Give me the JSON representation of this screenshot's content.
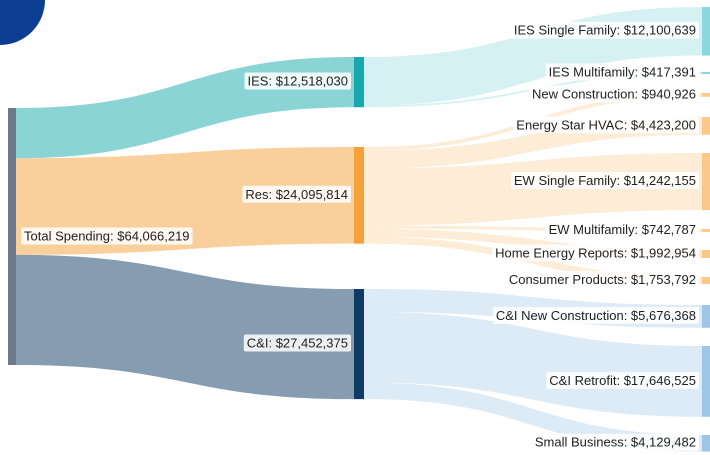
{
  "chart_data": {
    "type": "sankey",
    "nodes": [
      {
        "label": "Total Spending: $64,066,219",
        "value": 64066219,
        "color": "#6c7a8b",
        "parent": null
      },
      {
        "label": "IES: $12,518,030",
        "value": 12518030,
        "color": "#17a9ad",
        "parent": 0
      },
      {
        "label": "Res: $24,095,814",
        "value": 24095814,
        "color": "#f3a23a",
        "parent": 0
      },
      {
        "label": "C&I: $27,452,375",
        "value": 27452375,
        "color": "#0e3b63",
        "parent": 0
      },
      {
        "label": "IES Single Family: $12,100,639",
        "value": 12100639,
        "color": "#8ad8dc",
        "parent": 1
      },
      {
        "label": "IES Multifamily: $417,391",
        "value": 417391,
        "color": "#8ad8dc",
        "parent": 1
      },
      {
        "label": "New Construction: $940,926",
        "value": 940926,
        "color": "#f8c98a",
        "parent": 2
      },
      {
        "label": "Energy Star HVAC: $4,423,200",
        "value": 4423200,
        "color": "#f8c98a",
        "parent": 2
      },
      {
        "label": "EW Single Family: $14,242,155",
        "value": 14242155,
        "color": "#f8c98a",
        "parent": 2
      },
      {
        "label": "EW Multifamily: $742,787",
        "value": 742787,
        "color": "#f8c98a",
        "parent": 2
      },
      {
        "label": "Home Energy Reports: $1,992,954",
        "value": 1992954,
        "color": "#f8c98a",
        "parent": 2
      },
      {
        "label": "Consumer Products: $1,753,792",
        "value": 1753792,
        "color": "#f8c98a",
        "parent": 2
      },
      {
        "label": "C&I New Construction: $5,676,368",
        "value": 5676368,
        "color": "#9ec5e6",
        "parent": 3
      },
      {
        "label": "C&I Retrofit: $17,646,525",
        "value": 17646525,
        "color": "#9ec5e6",
        "parent": 3
      },
      {
        "label": "Small Business: $4,129,482",
        "value": 4129482,
        "color": "#9ec5e6",
        "parent": 3
      }
    ]
  }
}
